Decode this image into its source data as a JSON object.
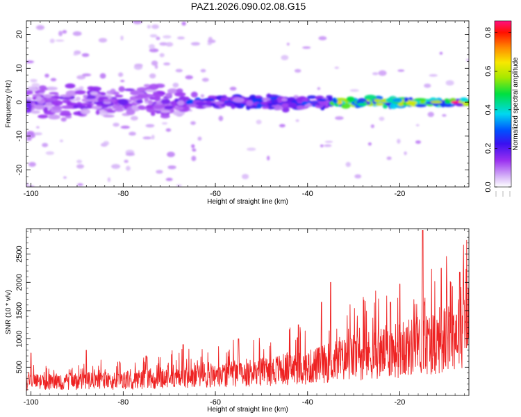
{
  "title": "PAZ1.2026.090.02.08.G15",
  "colors": {
    "snr_line": "#ee2222",
    "axis": "#000000"
  },
  "chart_data": [
    {
      "type": "heatmap",
      "xlabel": "Height of straight line (km)",
      "ylabel": "Frequency (Hz)",
      "xlim": [
        -101,
        -5
      ],
      "ylim": [
        -25,
        24
      ],
      "xticks": [
        -100,
        -80,
        -60,
        -40,
        -20
      ],
      "yticks": [
        -20,
        -10,
        0,
        10,
        20
      ],
      "colorbar": {
        "label": "Normalized spectral amplitude",
        "range": [
          0.0,
          0.86
        ],
        "ticks": [
          0.0,
          0.2,
          0.4,
          0.6,
          0.8
        ],
        "colormap": "rainbow (violet to red)"
      },
      "features": [
        {
          "x_range": [
            -101,
            -66
          ],
          "freq_center": 0,
          "freq_spread": 6,
          "amplitude": 0.15
        },
        {
          "x_range": [
            -66,
            -35
          ],
          "freq_center": 0,
          "freq_spread": 2.5,
          "amplitude": 0.25
        },
        {
          "x_range": [
            -35,
            -5
          ],
          "freq_center": 0,
          "freq_spread": 1.5,
          "amplitude": 0.55
        },
        {
          "x": -8,
          "freq": 0,
          "amplitude": 0.86
        }
      ]
    },
    {
      "type": "line",
      "xlabel": "Height of straight line (km)",
      "ylabel": "SNR (10 * v/v)",
      "xlim": [
        -101,
        -5
      ],
      "ylim": [
        0,
        2950
      ],
      "xticks": [
        -100,
        -80,
        -60,
        -40,
        -20
      ],
      "yticks": [
        500,
        1000,
        1500,
        2000,
        2500
      ],
      "series": [
        {
          "x_range": [
            -101,
            -5
          ],
          "trend": [
            [
              -101,
              250
            ],
            [
              -80,
              300
            ],
            [
              -60,
              400
            ],
            [
              -40,
              550
            ],
            [
              -30,
              750
            ],
            [
              -20,
              900
            ],
            [
              -10,
              1100
            ],
            [
              -5,
              1500
            ]
          ],
          "peaks": [
            [
              -100,
              750
            ],
            [
              -88,
              800
            ],
            [
              -75,
              700
            ],
            [
              -67,
              900
            ],
            [
              -55,
              1000
            ],
            [
              -42,
              1250
            ],
            [
              -37,
              1650
            ],
            [
              -35,
              2000
            ],
            [
              -22,
              1650
            ],
            [
              -20,
              1970
            ],
            [
              -15,
              2920
            ],
            [
              -11,
              2250
            ],
            [
              -7,
              2180
            ]
          ]
        }
      ]
    }
  ]
}
